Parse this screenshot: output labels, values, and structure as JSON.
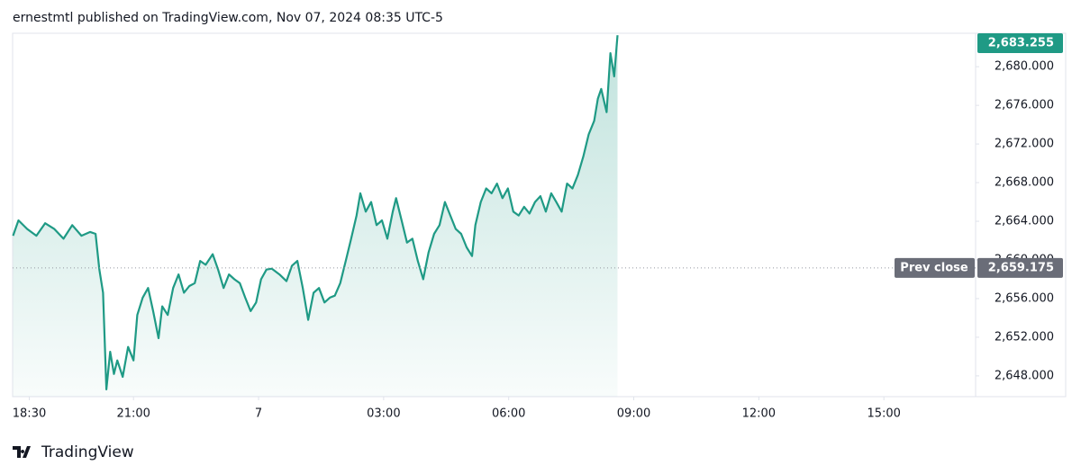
{
  "chart_data": {
    "type": "area",
    "title": "ernestmtl published on TradingView.com, Nov 07, 2024 08:35 UTC-5",
    "branding": "TradingView",
    "color": "#1f9a85",
    "x": [
      0.11,
      0.24,
      0.45,
      0.67,
      0.88,
      1.1,
      1.32,
      1.53,
      1.75,
      1.96,
      2.09,
      2.18,
      2.27,
      2.35,
      2.44,
      2.53,
      2.61,
      2.74,
      2.87,
      3.0,
      3.09,
      3.22,
      3.35,
      3.47,
      3.6,
      3.69,
      3.82,
      3.95,
      4.08,
      4.21,
      4.34,
      4.47,
      4.6,
      4.73,
      4.9,
      5.03,
      5.16,
      5.29,
      5.42,
      5.55,
      5.68,
      5.81,
      5.94,
      6.06,
      6.19,
      6.32,
      6.5,
      6.67,
      6.8,
      6.93,
      7.06,
      7.19,
      7.32,
      7.45,
      7.58,
      7.71,
      7.83,
      7.96,
      8.09,
      8.22,
      8.35,
      8.44,
      8.57,
      8.7,
      8.83,
      8.96,
      9.09,
      9.22,
      9.3,
      9.43,
      9.56,
      9.69,
      9.82,
      9.95,
      10.08,
      10.21,
      10.34,
      10.47,
      10.6,
      10.73,
      10.86,
      10.99,
      11.12,
      11.2,
      11.33,
      11.46,
      11.59,
      11.72,
      11.85,
      11.98,
      12.11,
      12.24,
      12.37,
      12.5,
      12.63,
      12.76,
      12.89,
      13.02,
      13.14,
      13.27,
      13.4,
      13.53,
      13.66,
      13.79,
      13.92,
      14.05,
      14.14,
      14.22,
      14.35,
      14.44,
      14.53,
      14.61
    ],
    "values": [
      2662.5,
      2664.1,
      2663.2,
      2662.5,
      2663.8,
      2663.2,
      2662.2,
      2663.6,
      2662.5,
      2662.9,
      2662.7,
      2659.0,
      2656.6,
      2646.6,
      2650.5,
      2648.2,
      2649.6,
      2647.9,
      2651.0,
      2649.6,
      2654.3,
      2656.1,
      2657.1,
      2654.7,
      2651.9,
      2655.2,
      2654.3,
      2657.1,
      2658.5,
      2656.6,
      2657.3,
      2657.6,
      2659.9,
      2659.5,
      2660.6,
      2659.0,
      2657.1,
      2658.5,
      2658.0,
      2657.6,
      2656.1,
      2654.7,
      2655.6,
      2658.0,
      2659.0,
      2659.1,
      2658.5,
      2657.8,
      2659.4,
      2659.9,
      2657.1,
      2653.8,
      2656.6,
      2657.1,
      2655.6,
      2656.1,
      2656.3,
      2657.6,
      2659.9,
      2662.2,
      2664.6,
      2666.9,
      2665.0,
      2666.0,
      2663.6,
      2664.1,
      2662.2,
      2665.0,
      2666.4,
      2664.1,
      2661.8,
      2662.2,
      2659.9,
      2658.0,
      2660.8,
      2662.7,
      2663.6,
      2666.0,
      2664.6,
      2663.2,
      2662.7,
      2661.3,
      2660.4,
      2663.6,
      2666.0,
      2667.4,
      2666.9,
      2667.9,
      2666.4,
      2667.4,
      2665.0,
      2664.6,
      2665.5,
      2664.8,
      2666.0,
      2666.6,
      2665.0,
      2666.9,
      2666.0,
      2665.0,
      2667.9,
      2667.4,
      2668.8,
      2670.7,
      2673.0,
      2674.4,
      2676.7,
      2677.7,
      2675.3,
      2681.4,
      2679.0,
      2683.255
    ],
    "last_price": {
      "value": 2683.255,
      "label": "2,683.255"
    },
    "prev_close": {
      "name": "Prev close",
      "value": 2659.175,
      "label": "2,659.175"
    },
    "xlim": [
      0.1,
      23.2
    ],
    "xticks": [
      {
        "value": 0.5,
        "label": "18:30"
      },
      {
        "value": 3,
        "label": "21:00"
      },
      {
        "value": 6,
        "label": "7"
      },
      {
        "value": 9,
        "label": "03:00"
      },
      {
        "value": 12,
        "label": "06:00"
      },
      {
        "value": 15,
        "label": "09:00"
      },
      {
        "value": 18,
        "label": "12:00"
      },
      {
        "value": 21,
        "label": "15:00"
      }
    ],
    "ylim": [
      2645.85,
      2683.46
    ],
    "yticks": [
      {
        "value": 2648,
        "label": "2,648.000"
      },
      {
        "value": 2652,
        "label": "2,652.000"
      },
      {
        "value": 2656,
        "label": "2,656.000"
      },
      {
        "value": 2660,
        "label": "2,660.000"
      },
      {
        "value": 2664,
        "label": "2,664.000"
      },
      {
        "value": 2668,
        "label": "2,668.000"
      },
      {
        "value": 2672,
        "label": "2,672.000"
      },
      {
        "value": 2676,
        "label": "2,676.000"
      },
      {
        "value": 2680,
        "label": "2,680.000"
      }
    ]
  }
}
